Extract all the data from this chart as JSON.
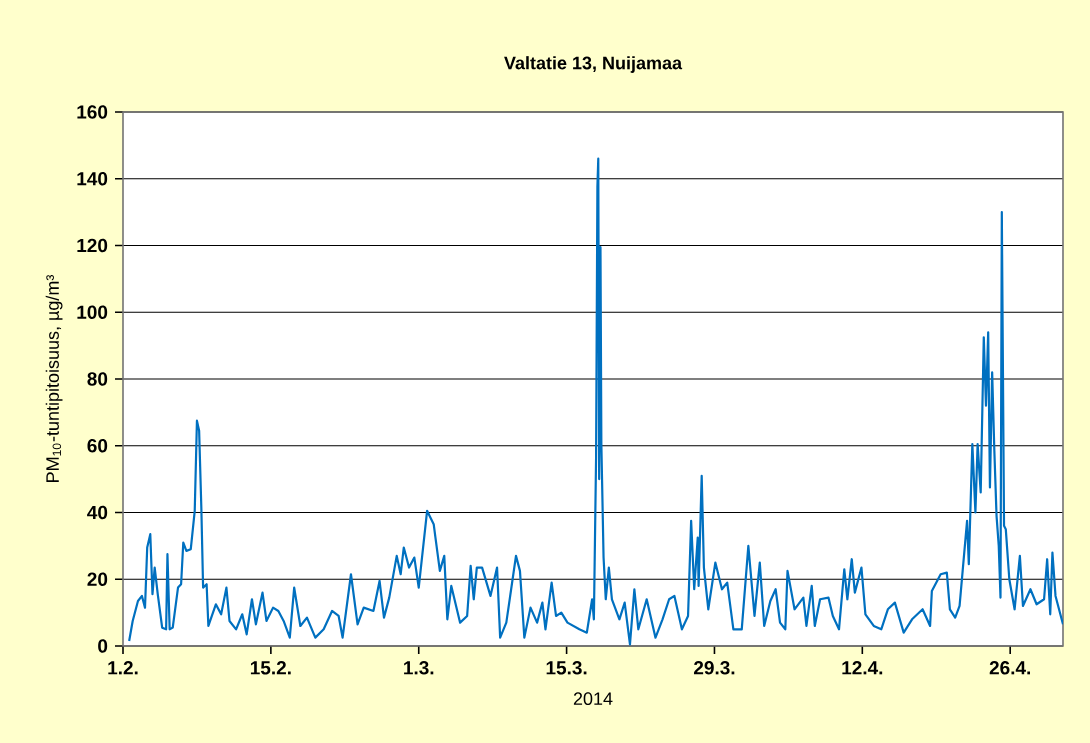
{
  "chart_data": {
    "type": "line",
    "title": "Valtatie 13, Nuijamaa",
    "xlabel": "2014",
    "ylabel": "PM$_{10}$-tuntipitoisuus, µg/m³",
    "xlim": [
      "2014-02-01",
      "2014-05-01"
    ],
    "xticks": [
      {
        "value": "2014-02-01",
        "label": "1.2."
      },
      {
        "value": "2014-02-15",
        "label": "15.2."
      },
      {
        "value": "2014-03-01",
        "label": "1.3."
      },
      {
        "value": "2014-03-15",
        "label": "15.3."
      },
      {
        "value": "2014-03-29",
        "label": "29.3."
      },
      {
        "value": "2014-04-12",
        "label": "12.4."
      },
      {
        "value": "2014-04-26",
        "label": "26.4."
      }
    ],
    "ylim": [
      0,
      160
    ],
    "yticks": [
      0,
      20,
      40,
      60,
      80,
      100,
      120,
      140,
      160
    ],
    "grid": "y",
    "legend": false,
    "marker": "none",
    "line_style": "solid",
    "series": [
      {
        "color": "#0070c0",
        "x": [
          "2014-02-01T14:00",
          "2014-02-01T22:00",
          "2014-02-02T10:00",
          "2014-02-02T19:00",
          "2014-02-03T02:00",
          "2014-02-03T07:00",
          "2014-02-03T14:00",
          "2014-02-03T19:00",
          "2014-02-04T00:00",
          "2014-02-04T07:00",
          "2014-02-04T17:00",
          "2014-02-05T02:00",
          "2014-02-05T05:00",
          "2014-02-05T10:00",
          "2014-02-05T17:00",
          "2014-02-06T05:00",
          "2014-02-06T12:00",
          "2014-02-06T17:00",
          "2014-02-07T00:00",
          "2014-02-07T10:00",
          "2014-02-07T19:00",
          "2014-02-08T00:00",
          "2014-02-08T05:00",
          "2014-02-08T10:00",
          "2014-02-08T14:00",
          "2014-02-08T22:00",
          "2014-02-09T02:00",
          "2014-02-09T19:00",
          "2014-02-10T07:00",
          "2014-02-10T19:00",
          "2014-02-11T02:00",
          "2014-02-11T17:00",
          "2014-02-12T07:00",
          "2014-02-12T17:00",
          "2014-02-13T05:00",
          "2014-02-13T14:00",
          "2014-02-14T05:00",
          "2014-02-14T14:00",
          "2014-02-15T05:00",
          "2014-02-15T17:00",
          "2014-02-16T05:00",
          "2014-02-16T19:00",
          "2014-02-17T05:00",
          "2014-02-17T19:00",
          "2014-02-18T10:00",
          "2014-02-19T05:00",
          "2014-02-20T00:00",
          "2014-02-20T19:00",
          "2014-02-21T10:00",
          "2014-02-21T19:00",
          "2014-02-22T14:00",
          "2014-02-23T05:00",
          "2014-02-23T19:00",
          "2014-02-24T17:00",
          "2014-02-25T07:00",
          "2014-02-25T17:00",
          "2014-02-26T05:00",
          "2014-02-26T22:00",
          "2014-02-27T07:00",
          "2014-02-27T14:00",
          "2014-02-28T02:00",
          "2014-02-28T14:00",
          "2014-03-01T00:00",
          "2014-03-01T19:00",
          "2014-03-02T10:00",
          "2014-03-02T14:00",
          "2014-03-03T00:00",
          "2014-03-03T10:00",
          "2014-03-03T17:00",
          "2014-03-04T02:00",
          "2014-03-04T22:00",
          "2014-03-05T14:00",
          "2014-03-05T22:00",
          "2014-03-06T05:00",
          "2014-03-06T12:00",
          "2014-03-07T00:00",
          "2014-03-07T19:00",
          "2014-03-08T10:00",
          "2014-03-08T17:00",
          "2014-03-09T07:00",
          "2014-03-10T05:00",
          "2014-03-10T14:00",
          "2014-03-11T00:00",
          "2014-03-11T14:00",
          "2014-03-12T05:00",
          "2014-03-12T17:00",
          "2014-03-13T00:00",
          "2014-03-13T14:00",
          "2014-03-14T00:00",
          "2014-03-14T12:00",
          "2014-03-15T02:00",
          "2014-03-16T05:00",
          "2014-03-16T22:00",
          "2014-03-17T10:00",
          "2014-03-17T14:00",
          "2014-03-17T19:00",
          "2014-03-17T22:00",
          "2014-03-18T00:00",
          "2014-03-18T02:00",
          "2014-03-18T05:00",
          "2014-03-18T07:00",
          "2014-03-18T12:00",
          "2014-03-18T17:00",
          "2014-03-19T00:00",
          "2014-03-19T07:00",
          "2014-03-20T00:00",
          "2014-03-20T12:00",
          "2014-03-21T00:00",
          "2014-03-21T10:00",
          "2014-03-21T19:00",
          "2014-03-22T14:00",
          "2014-03-23T10:00",
          "2014-03-24T02:00",
          "2014-03-24T17:00",
          "2014-03-25T05:00",
          "2014-03-25T22:00",
          "2014-03-26T12:00",
          "2014-03-26T19:00",
          "2014-03-27T02:00",
          "2014-03-27T10:00",
          "2014-03-27T12:00",
          "2014-03-27T19:00",
          "2014-03-28T00:00",
          "2014-03-28T10:00",
          "2014-03-29T02:00",
          "2014-03-29T17:00",
          "2014-03-30T05:00",
          "2014-03-30T19:00",
          "2014-03-31T14:00",
          "2014-04-01T05:00",
          "2014-04-01T19:00",
          "2014-04-02T07:00",
          "2014-04-02T17:00",
          "2014-04-03T07:00",
          "2014-04-03T19:00",
          "2014-04-04T05:00",
          "2014-04-04T17:00",
          "2014-04-04T22:00",
          "2014-04-05T14:00",
          "2014-04-06T10:00",
          "2014-04-06T17:00",
          "2014-04-07T05:00",
          "2014-04-07T12:00",
          "2014-04-08T00:00",
          "2014-04-08T19:00",
          "2014-04-09T05:00",
          "2014-04-09T19:00",
          "2014-04-10T07:00",
          "2014-04-10T14:00",
          "2014-04-11T00:00",
          "2014-04-11T07:00",
          "2014-04-11T22:00",
          "2014-04-12T07:00",
          "2014-04-13T02:00",
          "2014-04-13T19:00",
          "2014-04-14T10:00",
          "2014-04-15T02:00",
          "2014-04-15T22:00",
          "2014-04-16T17:00",
          "2014-04-17T17:00",
          "2014-04-18T10:00",
          "2014-04-18T14:00",
          "2014-04-19T10:00",
          "2014-04-20T00:00",
          "2014-04-20T07:00",
          "2014-04-20T19:00",
          "2014-04-21T05:00",
          "2014-04-21T12:00",
          "2014-04-21T22:00",
          "2014-04-22T02:00",
          "2014-04-22T10:00",
          "2014-04-22T17:00",
          "2014-04-22T22:00",
          "2014-04-23T05:00",
          "2014-04-23T12:00",
          "2014-04-23T17:00",
          "2014-04-23T22:00",
          "2014-04-24T02:00",
          "2014-04-24T07:00",
          "2014-04-24T12:00",
          "2014-04-24T17:00",
          "2014-04-24T22:00",
          "2014-04-25T02:00",
          "2014-04-25T05:00",
          "2014-04-25T10:00",
          "2014-04-25T14:00",
          "2014-04-25T22:00",
          "2014-04-26T10:00",
          "2014-04-26T22:00",
          "2014-04-27T05:00",
          "2014-04-27T22:00",
          "2014-04-28T12:00",
          "2014-04-29T05:00",
          "2014-04-29T12:00",
          "2014-04-29T19:00",
          "2014-04-30T00:00",
          "2014-04-30T07:00",
          "2014-05-01T00:00"
        ],
        "values": [
          1.5,
          7.5,
          13.5,
          15,
          11.5,
          29.5,
          33.5,
          15.5,
          23.5,
          15.5,
          5.5,
          5,
          27.5,
          5,
          5.5,
          17.5,
          18.5,
          31,
          28.5,
          29,
          40.5,
          67.5,
          64.5,
          41.5,
          17.5,
          18.5,
          6,
          12.5,
          9.5,
          17.5,
          7.5,
          5,
          9.5,
          3.5,
          14,
          6.5,
          16,
          7.5,
          11.5,
          10.5,
          7.5,
          2.5,
          17.5,
          6,
          8.5,
          2.5,
          5,
          10.5,
          9,
          2.5,
          21.5,
          6.5,
          11.5,
          10.5,
          19.5,
          8.5,
          14.5,
          27,
          21.5,
          29.5,
          23.5,
          26.5,
          17.5,
          40.5,
          36.5,
          32.5,
          22.5,
          27,
          8,
          18,
          7,
          9,
          24,
          14,
          23.5,
          23.5,
          15,
          23.5,
          2.5,
          7,
          27,
          22.5,
          2.5,
          11.5,
          7,
          13,
          5,
          19,
          9,
          10,
          7,
          5,
          4,
          14,
          8,
          56.5,
          137.5,
          146,
          50,
          119.5,
          60.5,
          26.5,
          14,
          23.5,
          14,
          8,
          13,
          0.5,
          17,
          5,
          14,
          2.5,
          8,
          14,
          15,
          5,
          9,
          37.5,
          17,
          32.5,
          18,
          51,
          23.5,
          11,
          25,
          17,
          19,
          5,
          5,
          30,
          9,
          25,
          6,
          13.5,
          17,
          7,
          5,
          22.5,
          11,
          14.5,
          6,
          18,
          6,
          14,
          14.5,
          9,
          5,
          23,
          14,
          26,
          16,
          23.5,
          9.5,
          6,
          5,
          11,
          13,
          4,
          8,
          11,
          6,
          16.5,
          21.5,
          22,
          11,
          8.5,
          12,
          22.5,
          37.5,
          24.5,
          60.5,
          40,
          60.5,
          46,
          92.5,
          72,
          94,
          47.5,
          82,
          58.5,
          39,
          30,
          14.5,
          130,
          36,
          35,
          20,
          11,
          27,
          12,
          17,
          12.5,
          14,
          26,
          9.5,
          28,
          15,
          6.5
        ]
      }
    ]
  }
}
